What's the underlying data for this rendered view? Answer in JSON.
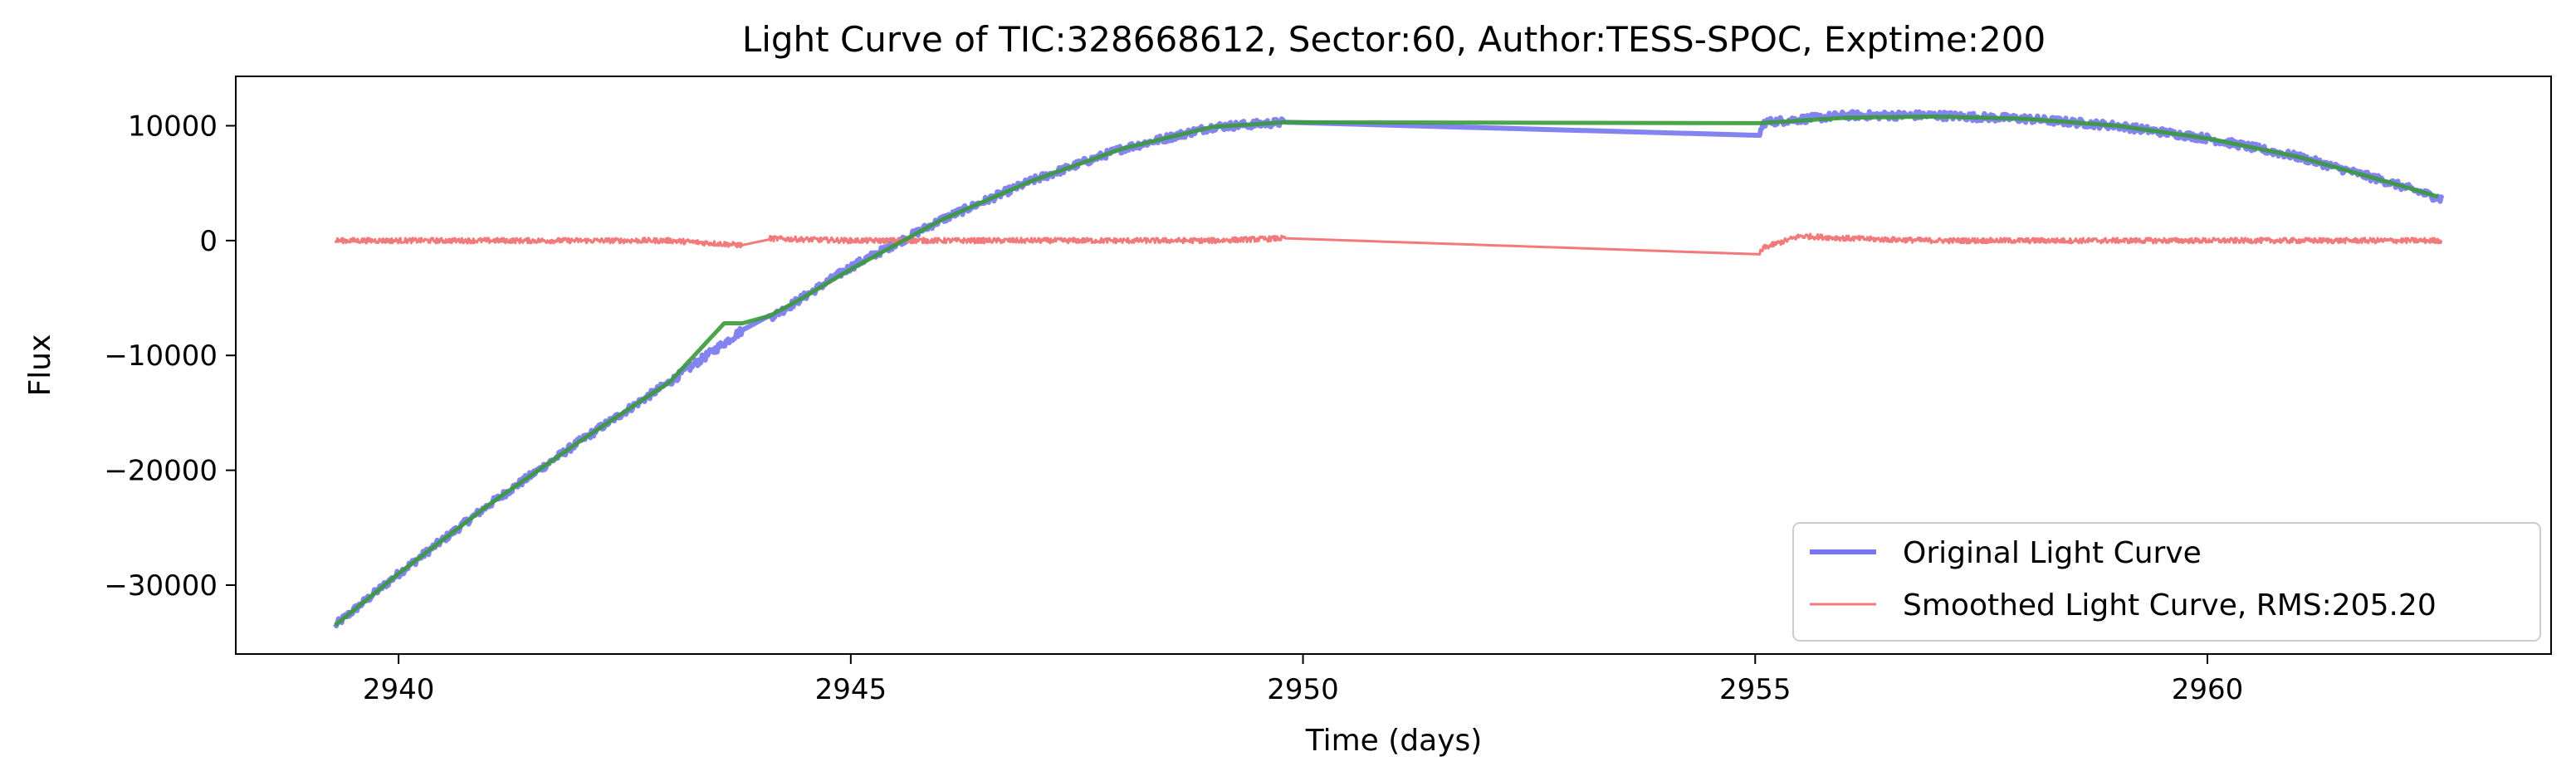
{
  "chart_data": {
    "type": "line",
    "title": "Light Curve of TIC:328668612, Sector:60, Author:TESS-SPOC, Exptime:200",
    "xlabel": "Time (days)",
    "ylabel": "Flux",
    "xlim": [
      2938.2,
      2963.8
    ],
    "ylim": [
      -36000,
      14300
    ],
    "xticks": [
      2940,
      2945,
      2950,
      2955,
      2960
    ],
    "yticks": [
      -30000,
      -20000,
      -10000,
      0,
      10000
    ],
    "xtick_labels": [
      "2940",
      "2945",
      "2950",
      "2955",
      "2960"
    ],
    "ytick_labels": [
      "−30000",
      "−20000",
      "−10000",
      "0",
      "10000"
    ],
    "grid": false,
    "legend_position": "lower-right",
    "series": [
      {
        "name": "Original Light Curve",
        "color": "#7777ee",
        "style": "thick noisy line",
        "x": [
          2939.3,
          2940.0,
          2941.0,
          2942.0,
          2943.0,
          2943.8,
          2944.2,
          2945.0,
          2946.0,
          2947.0,
          2948.0,
          2949.0,
          2949.8,
          2955.0,
          2955.1,
          2956.0,
          2957.0,
          2958.0,
          2959.0,
          2960.0,
          2961.0,
          2962.0,
          2962.6
        ],
        "y": [
          -33500,
          -29000,
          -23000,
          -17500,
          -12300,
          -7800,
          -6300,
          -2300,
          1800,
          5200,
          8000,
          9900,
          10300,
          8400,
          10300,
          10900,
          10900,
          10600,
          10000,
          8900,
          7300,
          5100,
          3600
        ]
      },
      {
        "name": "Smoothed Light Curve, RMS:205.20",
        "color": "#f27a7a",
        "style": "thin noisy line",
        "x": [
          2939.3,
          2940.0,
          2941.0,
          2942.0,
          2943.0,
          2943.8,
          2944.0,
          2945.0,
          2946.0,
          2947.0,
          2948.0,
          2949.0,
          2949.8,
          2955.0,
          2955.1,
          2955.5,
          2956.0,
          2956.4,
          2957.0,
          2958.0,
          2959.0,
          2960.0,
          2961.0,
          2962.0,
          2962.6
        ],
        "y": [
          0,
          0,
          0,
          0,
          0,
          -400,
          200,
          0,
          0,
          0,
          0,
          0,
          200,
          -1600,
          -600,
          400,
          200,
          100,
          0,
          0,
          0,
          0,
          0,
          0,
          0
        ]
      },
      {
        "color": "#3a9a3a",
        "style": "trend line",
        "x": [
          2939.3,
          2940.0,
          2941.0,
          2942.0,
          2943.0,
          2943.6,
          2943.95,
          2944.4,
          2945.0,
          2946.0,
          2947.0,
          2948.0,
          2949.0,
          2949.8,
          2955.0,
          2956.0,
          2957.0,
          2958.0,
          2959.0,
          2960.0,
          2961.0,
          2962.0,
          2962.6
        ],
        "y": [
          -33500,
          -29000,
          -23000,
          -17500,
          -12300,
          -7200,
          -7200,
          -5300,
          -2500,
          1800,
          5200,
          8000,
          9900,
          10300,
          10200,
          10700,
          10800,
          10600,
          10000,
          8900,
          7300,
          5100,
          3700
        ]
      }
    ]
  }
}
